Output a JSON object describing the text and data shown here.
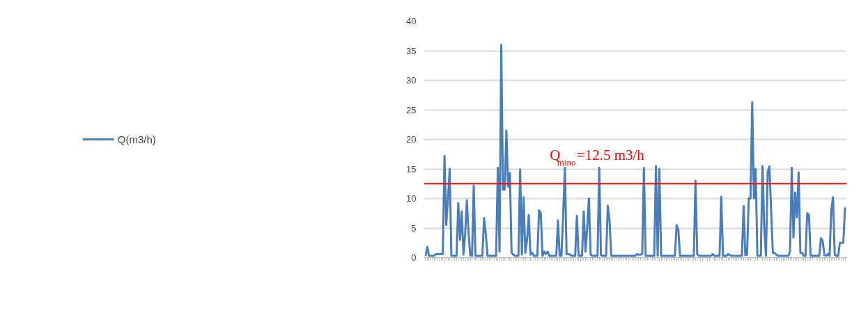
{
  "chart_data": {
    "type": "line",
    "categories": [
      null,
      null,
      null,
      null,
      null,
      null,
      null,
      null,
      null,
      null,
      null,
      null,
      null,
      null,
      null,
      null,
      null,
      null,
      null,
      null,
      null,
      null,
      null,
      null,
      null,
      null,
      null,
      null,
      null,
      null,
      null,
      null,
      null,
      null,
      null,
      null,
      null,
      null,
      null,
      null,
      null,
      null,
      null,
      null,
      null,
      null,
      null,
      null,
      null,
      null,
      null,
      null,
      null,
      null,
      null,
      null,
      null,
      null,
      null,
      null,
      null,
      null,
      null,
      null,
      null,
      null,
      null,
      null,
      null,
      null,
      null,
      null,
      null,
      null,
      null,
      null,
      null,
      null,
      null,
      null,
      null,
      null,
      null,
      null,
      null,
      null,
      null,
      null,
      null,
      null,
      null,
      null,
      null,
      null,
      null,
      null,
      null,
      null,
      null,
      null,
      null,
      null,
      null,
      null,
      null,
      null,
      null,
      null,
      null,
      null,
      null,
      null,
      null,
      null,
      null,
      null,
      null,
      null,
      null,
      null,
      null,
      null,
      null,
      null,
      null,
      null,
      null,
      null,
      null,
      null,
      null,
      null,
      null,
      null,
      null,
      null,
      null,
      null,
      null,
      null,
      null,
      null,
      null,
      null,
      null,
      null,
      null,
      null,
      null,
      null,
      null,
      null,
      null,
      null,
      null,
      null,
      null,
      null,
      null,
      null,
      null,
      null,
      null,
      null,
      null,
      null,
      null,
      null,
      null,
      null,
      null,
      null,
      null,
      null,
      null,
      null,
      null,
      null,
      null,
      null,
      null,
      null,
      null,
      null,
      null,
      null,
      null,
      null,
      null,
      null,
      null,
      null,
      null,
      null,
      null,
      null,
      null,
      null,
      null,
      null,
      null,
      null,
      null,
      null,
      null,
      null,
      null,
      null,
      null,
      null,
      null,
      null,
      null,
      null,
      null,
      null,
      null,
      null,
      null,
      null,
      null,
      null,
      null,
      null,
      null,
      null,
      null,
      null,
      null,
      null,
      null,
      null,
      null,
      null,
      null,
      null,
      null,
      null,
      null,
      null,
      null,
      null,
      null,
      null,
      null
    ],
    "series": [
      {
        "name": "Q(m3/h)",
        "color": "#4a7ebb",
        "values": [
          0.3,
          1.8,
          0.3,
          0.3,
          0.3,
          0.3,
          0.6,
          0.6,
          0.6,
          0.6,
          0.6,
          17.2,
          5.5,
          10,
          15,
          0.3,
          0.3,
          0.3,
          0.3,
          9.2,
          3,
          7.8,
          0.5,
          4,
          9.7,
          4,
          0.4,
          0.3,
          12.2,
          0.3,
          0.3,
          0.3,
          0.3,
          0.3,
          6.7,
          4,
          0.3,
          0.3,
          0.3,
          0.3,
          0.3,
          0.3,
          15.2,
          1,
          36,
          11.5,
          11.5,
          21.5,
          12,
          14.3,
          0.8,
          0.5,
          0.3,
          0.3,
          0.3,
          14.9,
          0.5,
          10.2,
          0.8,
          3,
          7.2,
          0.5,
          0.8,
          0.3,
          0.3,
          0.3,
          8,
          7.5,
          0.3,
          1,
          0.6,
          1,
          0.3,
          0.3,
          0.3,
          0.3,
          0.3,
          6.3,
          0.3,
          0.3,
          7,
          15.2,
          0.6,
          0.6,
          0.5,
          0.3,
          0.3,
          0.3,
          7.1,
          0.3,
          0.3,
          0.3,
          7.8,
          1,
          5,
          10,
          0.5,
          0.3,
          0.3,
          0.3,
          0.3,
          15.2,
          0.4,
          0.3,
          0.3,
          0.3,
          8.8,
          6.3,
          0.3,
          0.3,
          0.3,
          0.3,
          0.3,
          0.3,
          0.3,
          0.3,
          0.3,
          0.3,
          0.3,
          0.3,
          0.3,
          0.3,
          0.3,
          0.6,
          0.5,
          0.5,
          0.6,
          15.2,
          0.3,
          0.3,
          0.3,
          0.3,
          0.3,
          0.3,
          15.5,
          0.3,
          15,
          0.3,
          0.3,
          0.3,
          0.3,
          0.3,
          0.3,
          0.3,
          0.3,
          0.3,
          5.5,
          4.8,
          0.3,
          0.3,
          0.3,
          0.3,
          0.3,
          0.3,
          0.3,
          0.3,
          0.3,
          13,
          0.6,
          0.3,
          0.3,
          0.3,
          0.3,
          0.3,
          0.3,
          0.3,
          0.3,
          0.6,
          0.3,
          0.3,
          0.3,
          0.3,
          10.3,
          0.3,
          0.3,
          0.3,
          0.6,
          0.4,
          0.3,
          0.3,
          0.3,
          0.3,
          0.3,
          0.3,
          0.3,
          8.7,
          0.4,
          0.5,
          10,
          10,
          26.3,
          10,
          15,
          0.3,
          0.3,
          0.3,
          15.5,
          5,
          0.3,
          14.5,
          15.4,
          8,
          0.8,
          0.8,
          0.5,
          0.3,
          0.3,
          0.3,
          0.3,
          0.3,
          0.3,
          0.3,
          1,
          15.2,
          3.4,
          11,
          6.8,
          14.4,
          0.8,
          0.8,
          0.3,
          0.3,
          7.5,
          7.2,
          0.3,
          0.3,
          0.3,
          0.3,
          0.3,
          0.3,
          3.3,
          2.8,
          0.4,
          0.3,
          0.6,
          0.3,
          8,
          10.2,
          0.5,
          0.3,
          0.3,
          2.5,
          2.5,
          2.5,
          8.5
        ]
      }
    ],
    "ylim": [
      0,
      40
    ],
    "yticks": [
      0,
      5,
      10,
      15,
      20,
      25,
      30,
      35,
      40
    ],
    "grid": "y",
    "legend": "left",
    "ref_lines": [
      {
        "axis": "y",
        "value": 12.5,
        "label": "Q$_{mino}$=12.5 m3/h",
        "color": "#ff0000"
      }
    ]
  }
}
